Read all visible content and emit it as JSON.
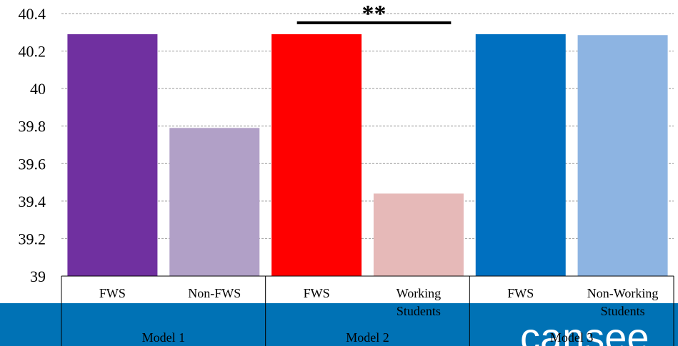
{
  "chart_data": {
    "type": "bar",
    "ylim": [
      39,
      40.4
    ],
    "yticks": [
      "39",
      "39.2",
      "39.4",
      "39.6",
      "39.8",
      "40",
      "40.2",
      "40.4"
    ],
    "grid": true,
    "bars": [
      {
        "group": "Model 1",
        "label": "FWS",
        "label2": "",
        "value": 40.29,
        "color": "#7030a0"
      },
      {
        "group": "Model 1",
        "label": "Non-FWS",
        "label2": "",
        "value": 39.79,
        "color": "#b1a0c7"
      },
      {
        "group": "Model 2",
        "label": "FWS",
        "label2": "",
        "value": 40.29,
        "color": "#ff0000"
      },
      {
        "group": "Model 2",
        "label": "Working",
        "label2": "Students",
        "value": 39.44,
        "color": "#e6b9b8"
      },
      {
        "group": "Model 3",
        "label": "FWS",
        "label2": "",
        "value": 40.29,
        "color": "#0070c0"
      },
      {
        "group": "Model 3",
        "label": "Non-Working",
        "label2": "Students",
        "value": 40.285,
        "color": "#8db4e2"
      }
    ],
    "groups": [
      "Model 1",
      "Model 2",
      "Model 3"
    ],
    "significance": {
      "text": "**",
      "group": "Model 2"
    }
  },
  "footer": {
    "logo_text": "cansee",
    "band_color": "#0072b5"
  }
}
